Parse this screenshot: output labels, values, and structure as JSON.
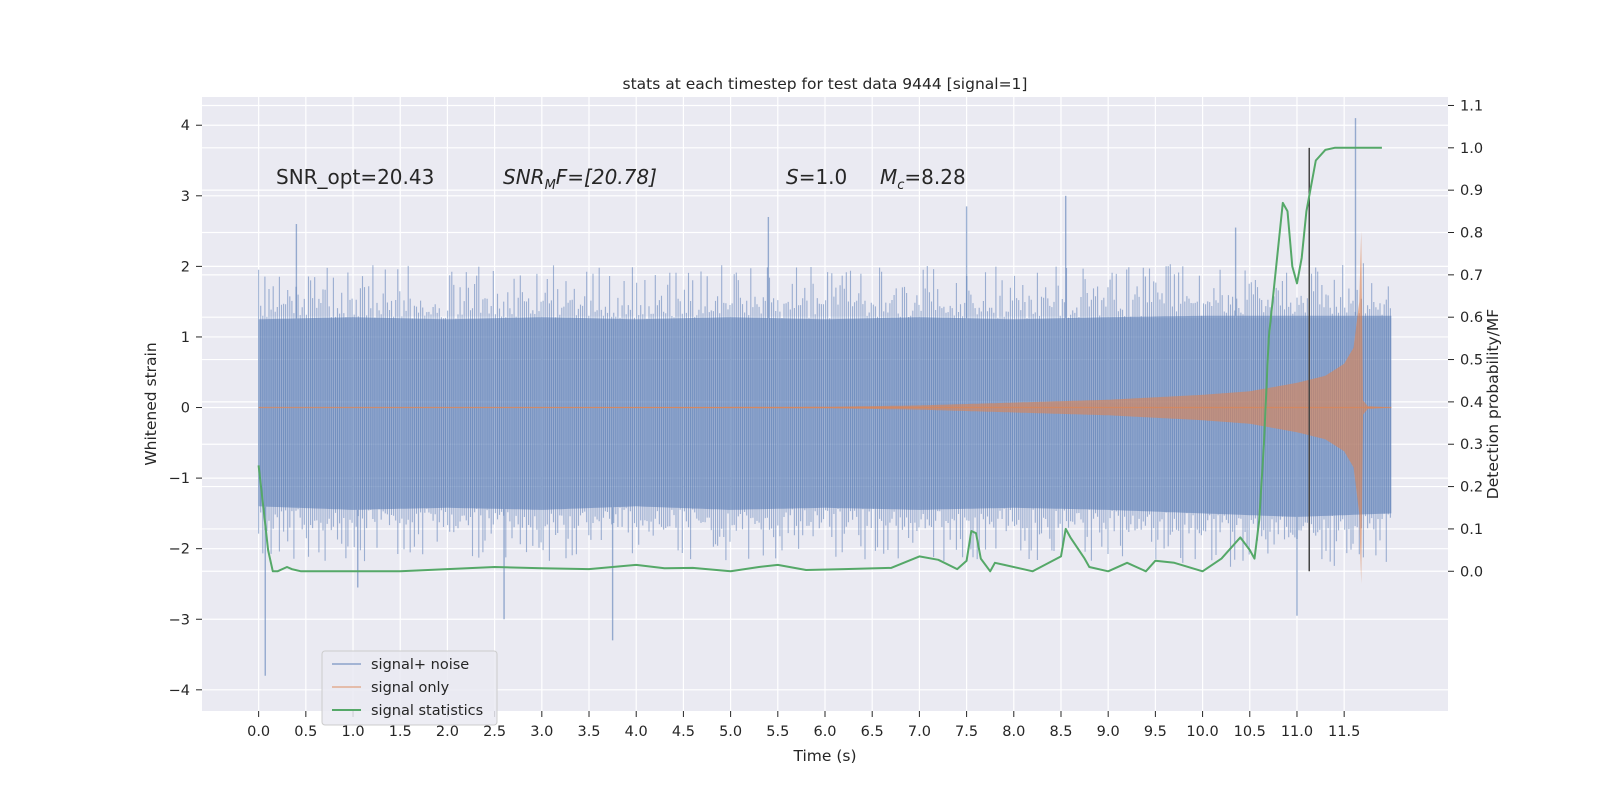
{
  "chart_data": {
    "type": "line",
    "title": "stats at each timestep for test data 9444 [signal=1]",
    "xlabel": "Time (s)",
    "ylabel": "Whitened strain",
    "y2label": "Detection probability/MF",
    "xlim": [
      -0.6,
      12.6
    ],
    "ylim": [
      -4.3,
      4.4
    ],
    "y2lim": [
      -0.33,
      1.12
    ],
    "x_ticks": [
      0.0,
      0.5,
      1.0,
      1.5,
      2.0,
      2.5,
      3.0,
      3.5,
      4.0,
      4.5,
      5.0,
      5.5,
      6.0,
      6.5,
      7.0,
      7.5,
      8.0,
      8.5,
      9.0,
      9.5,
      10.0,
      10.5,
      11.0,
      11.5
    ],
    "x_tick_labels": [
      "0.0",
      "0.5",
      "1.0",
      "1.5",
      "2.0",
      "2.5",
      "3.0",
      "3.5",
      "4.0",
      "4.5",
      "5.0",
      "5.5",
      "6.0",
      "6.5",
      "7.0",
      "7.5",
      "8.0",
      "8.5",
      "9.0",
      "9.5",
      "10.0",
      "10.5",
      "11.0",
      "11.5"
    ],
    "y_ticks": [
      4,
      3,
      2,
      1,
      0,
      -1,
      -2,
      -3,
      -4
    ],
    "y_tick_labels": [
      "4",
      "3",
      "2",
      "1",
      "0",
      "−1",
      "−2",
      "−3",
      "−4"
    ],
    "y2_ticks": [
      1.1,
      1.0,
      0.9,
      0.8,
      0.7,
      0.6,
      0.5,
      0.4,
      0.3,
      0.2,
      0.1,
      0.0
    ],
    "y2_tick_labels": [
      "1.1",
      "1.0",
      "0.9",
      "0.8",
      "0.7",
      "0.6",
      "0.5",
      "0.4",
      "0.3",
      "0.2",
      "0.1",
      "0.0"
    ],
    "grid": true,
    "legend_position": "lower-left",
    "annotations": {
      "snr_opt": "SNR_opt=20.43",
      "snr_mf_base": "SNR",
      "snr_mf_sub": "M",
      "snr_mf_rest": "F=[20.78]",
      "s_var": "S",
      "s_rest": "=1.0",
      "mc_var": "M",
      "mc_sub": "c",
      "mc_rest": "=8.28"
    },
    "vline_x": 11.13,
    "vline_y2_range": [
      0.0,
      1.0
    ],
    "noise_envelope": {
      "x": [
        0.0,
        1.0,
        2.0,
        3.0,
        4.0,
        5.0,
        6.0,
        7.0,
        8.0,
        9.0,
        10.0,
        11.0,
        12.0
      ],
      "upper": [
        1.25,
        1.28,
        1.25,
        1.28,
        1.25,
        1.28,
        1.25,
        1.28,
        1.25,
        1.28,
        1.3,
        1.3,
        1.3
      ],
      "lower": [
        -1.4,
        -1.45,
        -1.42,
        -1.45,
        -1.4,
        -1.45,
        -1.42,
        -1.45,
        -1.42,
        -1.45,
        -1.5,
        -1.55,
        -1.5
      ]
    },
    "signal_envelope": {
      "x": [
        0.0,
        6.0,
        7.0,
        8.0,
        9.0,
        10.0,
        10.5,
        11.0,
        11.3,
        11.5,
        11.6,
        11.66,
        11.68,
        11.7,
        11.75,
        12.0
      ],
      "amplitude": [
        0.0,
        0.01,
        0.03,
        0.07,
        0.11,
        0.18,
        0.23,
        0.35,
        0.45,
        0.62,
        0.85,
        1.5,
        2.5,
        0.1,
        0.02,
        0.0
      ]
    },
    "series": [
      {
        "name": "signal+ noise",
        "color": "#4c72b0",
        "peaks": [
          {
            "x": 0.07,
            "y": -3.8
          },
          {
            "x": 0.4,
            "y": 2.6
          },
          {
            "x": 1.05,
            "y": -2.55
          },
          {
            "x": 2.6,
            "y": -3.0
          },
          {
            "x": 3.75,
            "y": -3.3
          },
          {
            "x": 5.4,
            "y": 2.7
          },
          {
            "x": 7.5,
            "y": 2.85
          },
          {
            "x": 8.55,
            "y": 3.0
          },
          {
            "x": 11.62,
            "y": 4.1
          },
          {
            "x": 10.35,
            "y": 2.55
          },
          {
            "x": 11.0,
            "y": -2.95
          }
        ]
      },
      {
        "name": "signal only",
        "color": "#dd8452"
      },
      {
        "name": "signal statistics",
        "color": "#55a868",
        "x": [
          0.0,
          0.05,
          0.1,
          0.15,
          0.2,
          0.3,
          0.35,
          0.45,
          0.5,
          1.0,
          1.5,
          2.0,
          2.5,
          3.0,
          3.5,
          4.0,
          4.3,
          4.6,
          5.0,
          5.3,
          5.5,
          5.8,
          6.2,
          6.7,
          7.0,
          7.2,
          7.4,
          7.5,
          7.55,
          7.6,
          7.65,
          7.75,
          7.8,
          7.9,
          8.2,
          8.5,
          8.55,
          8.6,
          8.75,
          8.8,
          9.0,
          9.2,
          9.4,
          9.5,
          9.7,
          10.0,
          10.2,
          10.4,
          10.5,
          10.55,
          10.6,
          10.65,
          10.7,
          10.85,
          10.9,
          10.95,
          11.0,
          11.05,
          11.1,
          11.2,
          11.3,
          11.4,
          11.5,
          11.6,
          11.8,
          11.9
        ],
        "y": [
          0.25,
          0.15,
          0.05,
          0.0,
          0.0,
          0.01,
          0.005,
          0.0,
          0.0,
          0.0,
          0.0,
          0.005,
          0.01,
          0.007,
          0.005,
          0.015,
          0.007,
          0.008,
          0.0,
          0.01,
          0.015,
          0.003,
          0.005,
          0.008,
          0.035,
          0.027,
          0.005,
          0.025,
          0.095,
          0.09,
          0.03,
          0.0,
          0.02,
          0.015,
          0.0,
          0.035,
          0.1,
          0.08,
          0.03,
          0.01,
          0.0,
          0.02,
          0.0,
          0.025,
          0.02,
          0.0,
          0.03,
          0.08,
          0.05,
          0.03,
          0.12,
          0.3,
          0.55,
          0.87,
          0.85,
          0.72,
          0.68,
          0.74,
          0.85,
          0.97,
          0.995,
          1.0,
          1.0,
          1.0,
          1.0,
          1.0
        ]
      }
    ]
  }
}
